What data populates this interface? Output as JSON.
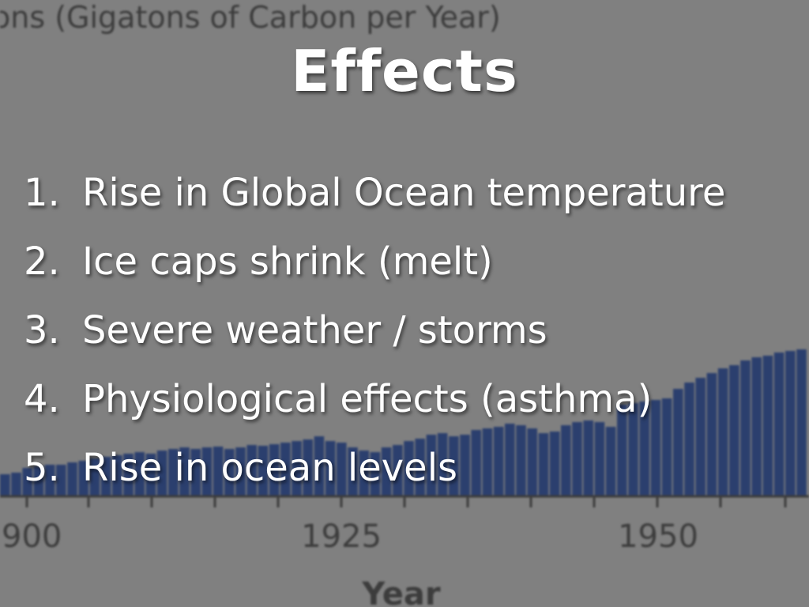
{
  "background_chart": {
    "ylabel_fragment": "ons (Gigatons of Carbon per Year)",
    "xlabel": "Year",
    "x_tick_labels": [
      "900",
      "1925",
      "1950"
    ],
    "colors": {
      "bar": "#2b3f6e",
      "background": "#808080",
      "axis": "#3c3c3c"
    }
  },
  "slide": {
    "title": "Effects",
    "items": [
      {
        "number": "1.",
        "text": "Rise in Global Ocean temperature"
      },
      {
        "number": "2.",
        "text": "Ice caps shrink (melt)"
      },
      {
        "number": "3.",
        "text": "Severe weather / storms"
      },
      {
        "number": "4.",
        "text": "Physiological effects (asthma)"
      },
      {
        "number": "5.",
        "text": "Rise in ocean levels"
      }
    ]
  }
}
